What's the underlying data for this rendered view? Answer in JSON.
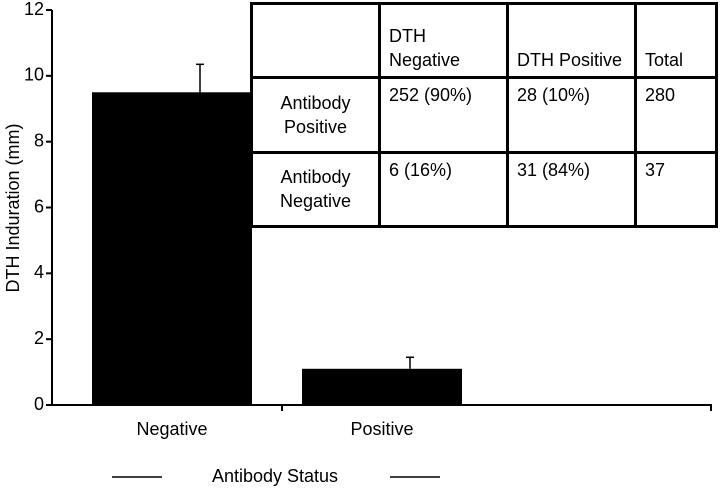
{
  "chart_data": {
    "type": "bar",
    "y_label": "DTH Induration (mm)",
    "x_label": "Antibody Status",
    "categories": [
      "Negative",
      "Positive"
    ],
    "values": [
      9.5,
      1.1
    ],
    "errors": [
      0.85,
      0.35
    ],
    "color": "#000000",
    "ylim": [
      0,
      12
    ],
    "yticks": [
      0,
      2,
      4,
      6,
      8,
      10,
      12
    ],
    "grid": false
  },
  "table": {
    "columns": [
      "DTH Negative",
      "DTH Positive",
      "Total"
    ],
    "rows": [
      {
        "label": "Antibody Positive",
        "cells": [
          "252 (90%)",
          "28 (10%)",
          "280"
        ]
      },
      {
        "label": "Antibody Negative",
        "cells": [
          "6 (16%)",
          "31 (84%)",
          "37"
        ]
      }
    ]
  }
}
